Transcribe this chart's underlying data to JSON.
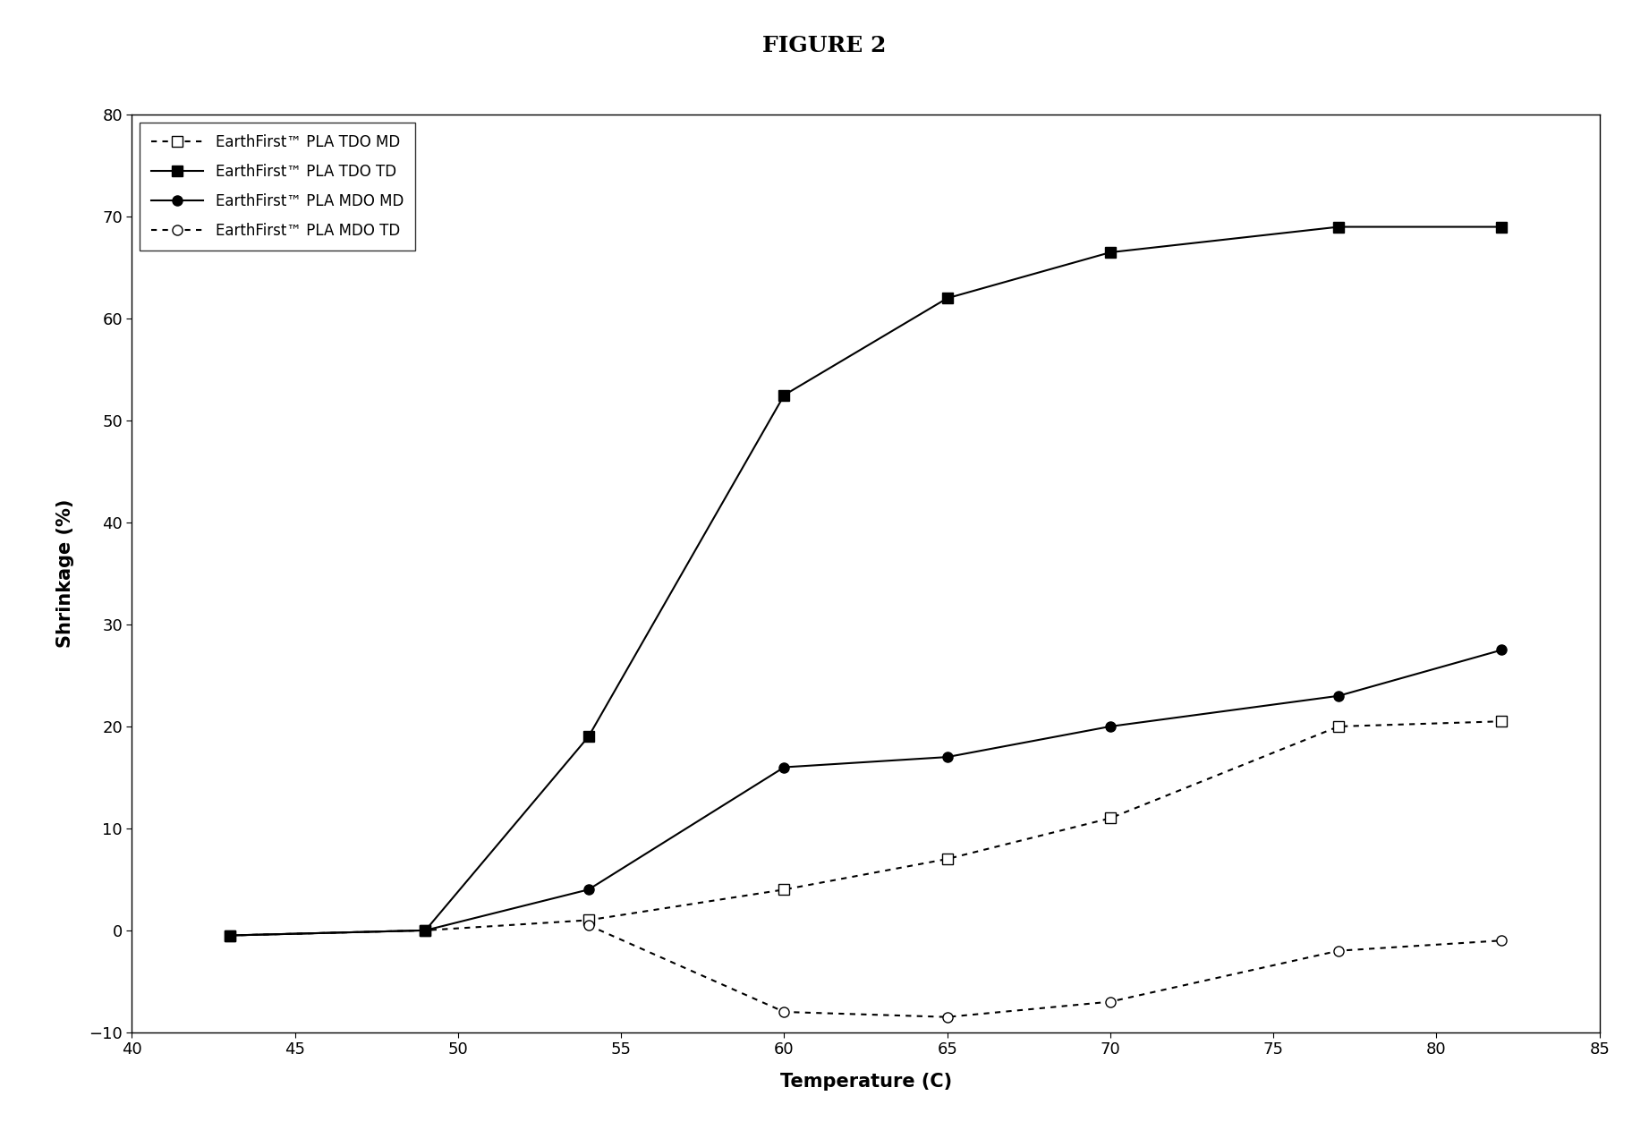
{
  "title": "FIGURE 2",
  "xlabel": "Temperature (C)",
  "ylabel": "Shrinkage (%)",
  "xlim": [
    40,
    85
  ],
  "ylim": [
    -10,
    80
  ],
  "xticks": [
    40,
    45,
    50,
    55,
    60,
    65,
    70,
    75,
    80,
    85
  ],
  "yticks": [
    -10,
    0,
    10,
    20,
    30,
    40,
    50,
    60,
    70,
    80
  ],
  "series": [
    {
      "label": "EarthFirst™ PLA TDO MD",
      "x": [
        43,
        49,
        54,
        60,
        65,
        70,
        77,
        82
      ],
      "y": [
        -0.5,
        0.0,
        1.0,
        4.0,
        7.0,
        11.0,
        20.0,
        20.5
      ],
      "color": "#000000",
      "linestyle": "dotted",
      "marker": "s",
      "markerfacecolor": "white",
      "markersize": 8,
      "linewidth": 1.5
    },
    {
      "label": "EarthFirst™ PLA TDO TD",
      "x": [
        43,
        49,
        54,
        60,
        65,
        70,
        77,
        82
      ],
      "y": [
        -0.5,
        0.0,
        19.0,
        52.5,
        62.0,
        66.5,
        69.0,
        69.0
      ],
      "color": "#000000",
      "linestyle": "solid",
      "marker": "s",
      "markerfacecolor": "black",
      "markersize": 8,
      "linewidth": 1.5
    },
    {
      "label": "EarthFirst™ PLA MDO MD",
      "x": [
        43,
        49,
        54,
        60,
        65,
        70,
        77,
        82
      ],
      "y": [
        -0.5,
        0.0,
        4.0,
        16.0,
        17.0,
        20.0,
        23.0,
        27.5
      ],
      "color": "#000000",
      "linestyle": "solid",
      "marker": "o",
      "markerfacecolor": "black",
      "markersize": 8,
      "linewidth": 1.5
    },
    {
      "label": "EarthFirst™ PLA MDO TD",
      "x": [
        54,
        60,
        65,
        70,
        77,
        82
      ],
      "y": [
        0.5,
        -8.0,
        -8.5,
        -7.0,
        -2.0,
        -1.0
      ],
      "color": "#000000",
      "linestyle": "dotted",
      "marker": "o",
      "markerfacecolor": "white",
      "markersize": 8,
      "linewidth": 1.5
    }
  ],
  "background_color": "#ffffff",
  "title_fontsize": 18,
  "axis_label_fontsize": 15,
  "tick_fontsize": 13,
  "legend_fontsize": 12
}
